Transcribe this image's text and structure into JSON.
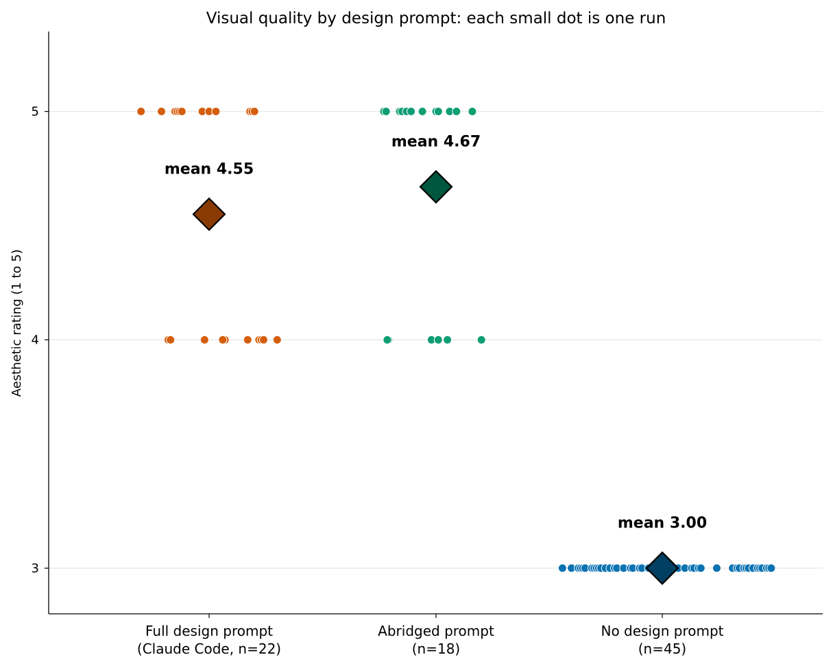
{
  "chart_data": {
    "type": "scatter",
    "title": "Visual quality by design prompt: each small dot is one run",
    "ylabel": "Aesthetic rating (1 to 5)",
    "xlabel": "",
    "ylim": [
      2.8,
      5.35
    ],
    "yticks": [
      3,
      4,
      5
    ],
    "grid": "horizontal",
    "categories": [
      {
        "line1": "Full design prompt",
        "line2": "(Claude Code, n=22)"
      },
      {
        "line1": "Abridged prompt",
        "line2": "(n=18)"
      },
      {
        "line1": "No design prompt",
        "line2": "(n=45)"
      }
    ],
    "series": [
      {
        "category_index": 0,
        "color": "#d55e0e",
        "mean_color": "#8a3b04",
        "mean": 4.55,
        "mean_label": "mean 4.55",
        "points": [
          {
            "offset": -0.3,
            "value": 5
          },
          {
            "offset": -0.21,
            "value": 5
          },
          {
            "offset": -0.15,
            "value": 5
          },
          {
            "offset": -0.14,
            "value": 5
          },
          {
            "offset": -0.13,
            "value": 5
          },
          {
            "offset": -0.12,
            "value": 5
          },
          {
            "offset": -0.03,
            "value": 5
          },
          {
            "offset": 0.0,
            "value": 5
          },
          {
            "offset": 0.03,
            "value": 5
          },
          {
            "offset": 0.18,
            "value": 5
          },
          {
            "offset": 0.19,
            "value": 5
          },
          {
            "offset": 0.2,
            "value": 5
          },
          {
            "offset": -0.18,
            "value": 4
          },
          {
            "offset": -0.17,
            "value": 4
          },
          {
            "offset": -0.02,
            "value": 4
          },
          {
            "offset": 0.07,
            "value": 4
          },
          {
            "offset": 0.17,
            "value": 4
          },
          {
            "offset": 0.22,
            "value": 4
          },
          {
            "offset": 0.23,
            "value": 4
          },
          {
            "offset": 0.24,
            "value": 4
          },
          {
            "offset": 0.3,
            "value": 4
          },
          {
            "offset": 0.06,
            "value": 4
          }
        ]
      },
      {
        "category_index": 1,
        "color": "#0f9e74",
        "mean_color": "#00573f",
        "mean": 4.67,
        "mean_label": "mean 4.67",
        "points": [
          {
            "offset": -0.23,
            "value": 5
          },
          {
            "offset": -0.22,
            "value": 5
          },
          {
            "offset": -0.16,
            "value": 5
          },
          {
            "offset": -0.15,
            "value": 5
          },
          {
            "offset": -0.13,
            "value": 5
          },
          {
            "offset": -0.11,
            "value": 5
          },
          {
            "offset": -0.06,
            "value": 5
          },
          {
            "offset": 0.0,
            "value": 5
          },
          {
            "offset": 0.01,
            "value": 5
          },
          {
            "offset": 0.06,
            "value": 5
          },
          {
            "offset": 0.09,
            "value": 5
          },
          {
            "offset": 0.16,
            "value": 5
          },
          {
            "offset": -0.21,
            "value": 4
          },
          {
            "offset": -0.215,
            "value": 4
          },
          {
            "offset": -0.02,
            "value": 4
          },
          {
            "offset": 0.01,
            "value": 4
          },
          {
            "offset": 0.05,
            "value": 4
          },
          {
            "offset": 0.2,
            "value": 4
          }
        ]
      },
      {
        "category_index": 2,
        "color": "#0b72b2",
        "mean_color": "#003f61",
        "mean": 3.0,
        "mean_label": "mean 3.00",
        "points": [
          {
            "offset": -0.44,
            "value": 3
          },
          {
            "offset": -0.4,
            "value": 3
          },
          {
            "offset": -0.37,
            "value": 3
          },
          {
            "offset": -0.36,
            "value": 3
          },
          {
            "offset": -0.35,
            "value": 3
          },
          {
            "offset": -0.34,
            "value": 3
          },
          {
            "offset": -0.31,
            "value": 3
          },
          {
            "offset": -0.3,
            "value": 3
          },
          {
            "offset": -0.29,
            "value": 3
          },
          {
            "offset": -0.28,
            "value": 3
          },
          {
            "offset": -0.27,
            "value": 3
          },
          {
            "offset": -0.25,
            "value": 3
          },
          {
            "offset": -0.23,
            "value": 3
          },
          {
            "offset": -0.21,
            "value": 3
          },
          {
            "offset": -0.2,
            "value": 3
          },
          {
            "offset": -0.17,
            "value": 3
          },
          {
            "offset": -0.14,
            "value": 3
          },
          {
            "offset": -0.13,
            "value": 3
          },
          {
            "offset": -0.1,
            "value": 3
          },
          {
            "offset": -0.09,
            "value": 3
          },
          {
            "offset": -0.06,
            "value": 3
          },
          {
            "offset": -0.03,
            "value": 3
          },
          {
            "offset": -0.01,
            "value": 3
          },
          {
            "offset": 0.02,
            "value": 3
          },
          {
            "offset": 0.05,
            "value": 3
          },
          {
            "offset": 0.07,
            "value": 3
          },
          {
            "offset": 0.1,
            "value": 3
          },
          {
            "offset": 0.13,
            "value": 3
          },
          {
            "offset": 0.14,
            "value": 3
          },
          {
            "offset": 0.16,
            "value": 3
          },
          {
            "offset": 0.17,
            "value": 3
          },
          {
            "offset": 0.24,
            "value": 3
          },
          {
            "offset": 0.31,
            "value": 3
          },
          {
            "offset": 0.33,
            "value": 3
          },
          {
            "offset": 0.34,
            "value": 3
          },
          {
            "offset": 0.36,
            "value": 3
          },
          {
            "offset": 0.37,
            "value": 3
          },
          {
            "offset": 0.38,
            "value": 3
          },
          {
            "offset": 0.4,
            "value": 3
          },
          {
            "offset": 0.42,
            "value": 3
          },
          {
            "offset": 0.43,
            "value": 3
          },
          {
            "offset": 0.44,
            "value": 3
          },
          {
            "offset": 0.46,
            "value": 3
          },
          {
            "offset": 0.47,
            "value": 3
          },
          {
            "offset": 0.48,
            "value": 3
          }
        ]
      }
    ]
  }
}
